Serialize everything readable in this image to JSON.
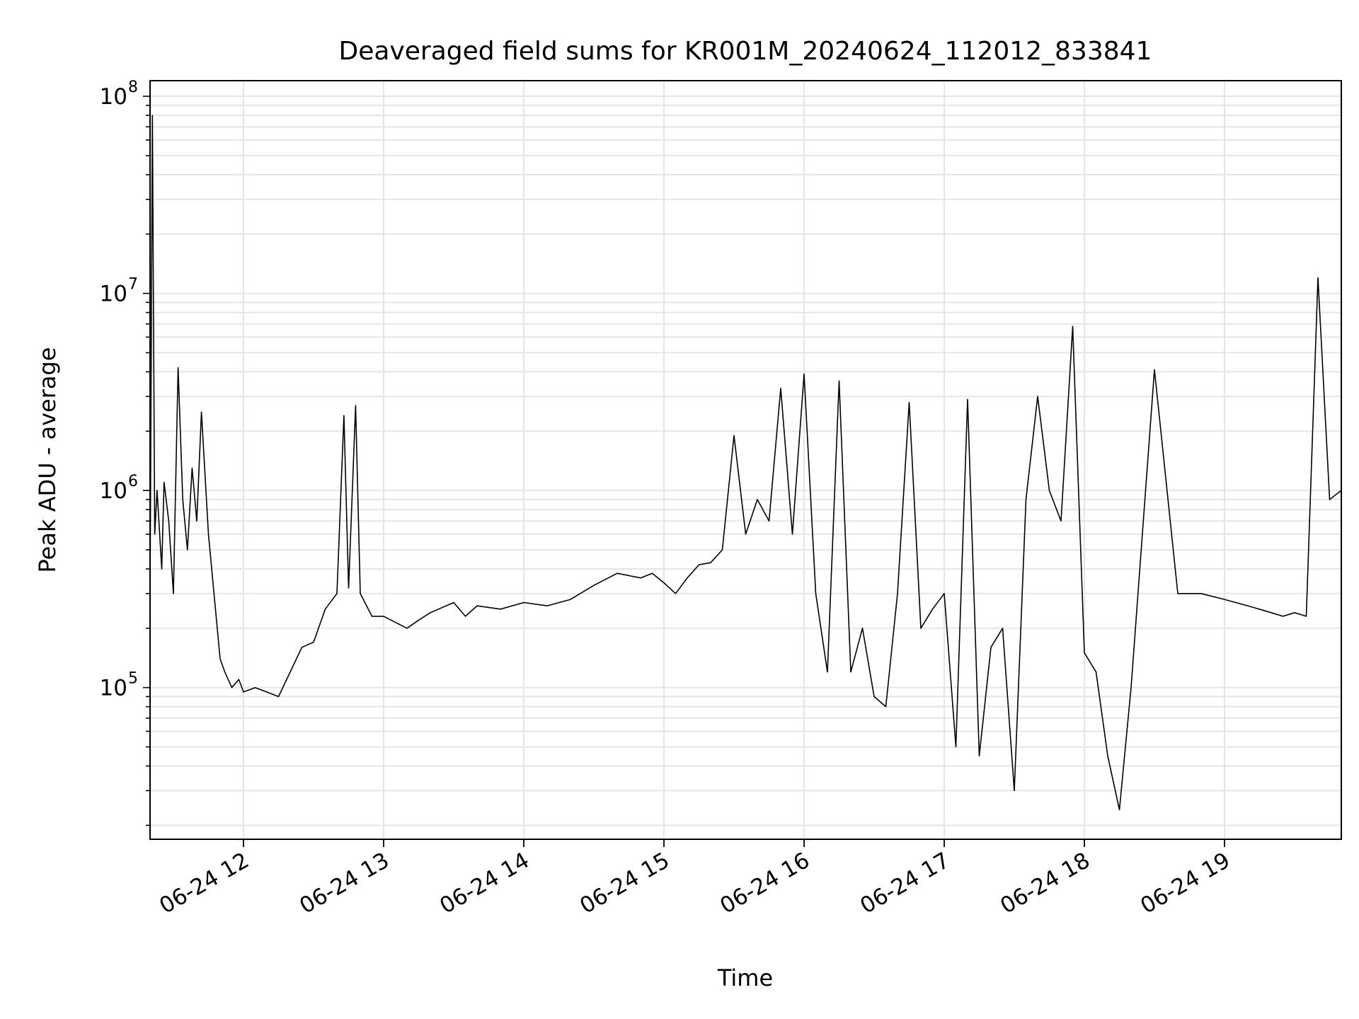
{
  "chart_data": {
    "type": "line",
    "title": "Deaveraged field sums for KR001M_20240624_112012_833841",
    "xlabel": "Time",
    "ylabel": "Peak ADU - average",
    "y_scale": "log",
    "ylim": [
      17000,
      120000000
    ],
    "xlim": [
      "2024-06-24 11:20",
      "2024-06-24 19:50"
    ],
    "grid": true,
    "line_color": "#000000",
    "grid_color": "#e5e5e5",
    "x_ticks": [
      {
        "value": "2024-06-24 12:00",
        "label": "06-24 12"
      },
      {
        "value": "2024-06-24 13:00",
        "label": "06-24 13"
      },
      {
        "value": "2024-06-24 14:00",
        "label": "06-24 14"
      },
      {
        "value": "2024-06-24 15:00",
        "label": "06-24 15"
      },
      {
        "value": "2024-06-24 16:00",
        "label": "06-24 16"
      },
      {
        "value": "2024-06-24 17:00",
        "label": "06-24 17"
      },
      {
        "value": "2024-06-24 18:00",
        "label": "06-24 18"
      },
      {
        "value": "2024-06-24 19:00",
        "label": "06-24 19"
      }
    ],
    "y_ticks": [
      {
        "value": 100000,
        "base": "10",
        "exp": "5"
      },
      {
        "value": 1000000,
        "base": "10",
        "exp": "6"
      },
      {
        "value": 10000000,
        "base": "10",
        "exp": "7"
      },
      {
        "value": 100000000,
        "base": "10",
        "exp": "8"
      }
    ],
    "series": [
      {
        "x": [
          "2024-06-24 11:20",
          "2024-06-24 11:21",
          "2024-06-24 11:22",
          "2024-06-24 11:23",
          "2024-06-24 11:25",
          "2024-06-24 11:26",
          "2024-06-24 11:28",
          "2024-06-24 11:30",
          "2024-06-24 11:32",
          "2024-06-24 11:34",
          "2024-06-24 11:36",
          "2024-06-24 11:38",
          "2024-06-24 11:40",
          "2024-06-24 11:42",
          "2024-06-24 11:45",
          "2024-06-24 11:48",
          "2024-06-24 11:50",
          "2024-06-24 11:52",
          "2024-06-24 11:55",
          "2024-06-24 11:58",
          "2024-06-24 12:00",
          "2024-06-24 12:05",
          "2024-06-24 12:10",
          "2024-06-24 12:15",
          "2024-06-24 12:20",
          "2024-06-24 12:25",
          "2024-06-24 12:30",
          "2024-06-24 12:35",
          "2024-06-24 12:40",
          "2024-06-24 12:43",
          "2024-06-24 12:45",
          "2024-06-24 12:48",
          "2024-06-24 12:50",
          "2024-06-24 12:55",
          "2024-06-24 13:00",
          "2024-06-24 13:10",
          "2024-06-24 13:15",
          "2024-06-24 13:20",
          "2024-06-24 13:30",
          "2024-06-24 13:35",
          "2024-06-24 13:40",
          "2024-06-24 13:50",
          "2024-06-24 14:00",
          "2024-06-24 14:10",
          "2024-06-24 14:20",
          "2024-06-24 14:30",
          "2024-06-24 14:40",
          "2024-06-24 14:50",
          "2024-06-24 14:55",
          "2024-06-24 15:00",
          "2024-06-24 15:05",
          "2024-06-24 15:10",
          "2024-06-24 15:15",
          "2024-06-24 15:20",
          "2024-06-24 15:25",
          "2024-06-24 15:30",
          "2024-06-24 15:35",
          "2024-06-24 15:40",
          "2024-06-24 15:45",
          "2024-06-24 15:50",
          "2024-06-24 15:55",
          "2024-06-24 16:00",
          "2024-06-24 16:05",
          "2024-06-24 16:10",
          "2024-06-24 16:15",
          "2024-06-24 16:20",
          "2024-06-24 16:25",
          "2024-06-24 16:30",
          "2024-06-24 16:35",
          "2024-06-24 16:40",
          "2024-06-24 16:45",
          "2024-06-24 16:50",
          "2024-06-24 16:55",
          "2024-06-24 17:00",
          "2024-06-24 17:05",
          "2024-06-24 17:10",
          "2024-06-24 17:15",
          "2024-06-24 17:20",
          "2024-06-24 17:25",
          "2024-06-24 17:30",
          "2024-06-24 17:35",
          "2024-06-24 17:40",
          "2024-06-24 17:45",
          "2024-06-24 17:50",
          "2024-06-24 17:55",
          "2024-06-24 18:00",
          "2024-06-24 18:05",
          "2024-06-24 18:10",
          "2024-06-24 18:15",
          "2024-06-24 18:20",
          "2024-06-24 18:30",
          "2024-06-24 18:40",
          "2024-06-24 18:50",
          "2024-06-24 19:00",
          "2024-06-24 19:10",
          "2024-06-24 19:20",
          "2024-06-24 19:25",
          "2024-06-24 19:30",
          "2024-06-24 19:35",
          "2024-06-24 19:40",
          "2024-06-24 19:45",
          "2024-06-24 19:50"
        ],
        "y": [
          300000,
          80000000,
          600000,
          1000000,
          400000,
          1100000,
          700000,
          300000,
          4200000,
          900000,
          500000,
          1300000,
          700000,
          2500000,
          600000,
          250000,
          140000,
          120000,
          100000,
          110000,
          95000,
          100000,
          95000,
          90000,
          120000,
          160000,
          170000,
          250000,
          300000,
          2400000,
          320000,
          2700000,
          300000,
          230000,
          230000,
          200000,
          220000,
          240000,
          270000,
          230000,
          260000,
          250000,
          270000,
          260000,
          280000,
          330000,
          380000,
          360000,
          380000,
          340000,
          300000,
          360000,
          420000,
          430000,
          500000,
          1900000,
          600000,
          900000,
          700000,
          3300000,
          600000,
          3900000,
          300000,
          120000,
          3600000,
          120000,
          200000,
          90000,
          80000,
          300000,
          2800000,
          200000,
          250000,
          300000,
          50000,
          2900000,
          45000,
          160000,
          200000,
          30000,
          900000,
          3000000,
          1000000,
          700000,
          6800000,
          150000,
          120000,
          45000,
          24000,
          100000,
          4100000,
          300000,
          300000,
          280000,
          260000,
          240000,
          230000,
          240000,
          230000,
          12000000,
          900000,
          1000000
        ]
      }
    ]
  }
}
